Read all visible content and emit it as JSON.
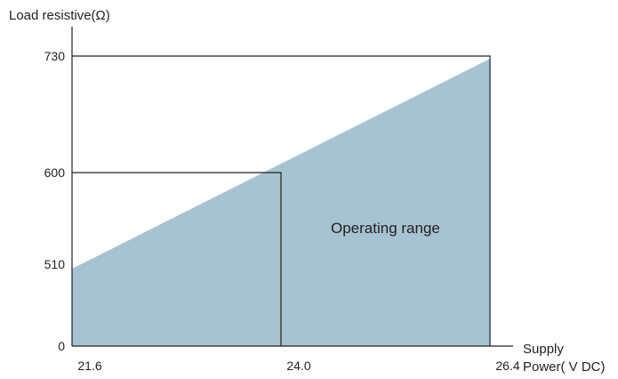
{
  "chart_data": {
    "type": "area",
    "title": "",
    "ylabel": "Load resistive(Ω)",
    "xlabel_line1": "Supply",
    "xlabel_line2": "Power( V DC)",
    "x_ticks": [
      "21.6",
      "24.0",
      "26.4"
    ],
    "y_ticks": [
      "0",
      "510",
      "600",
      "730"
    ],
    "series": [
      {
        "x": [
          21.6,
          26.4
        ],
        "y": [
          482,
          727
        ]
      }
    ],
    "reference_lines": [
      {
        "label": "24.0 V / 600 Ω",
        "x": 24.0,
        "y": 600
      },
      {
        "label": "26.4 V / 730 Ω",
        "x": 26.4,
        "y": 730
      }
    ],
    "annotation": "Operating range",
    "colors": {
      "fill": "#a6c3d1",
      "line": "#231f20"
    }
  }
}
